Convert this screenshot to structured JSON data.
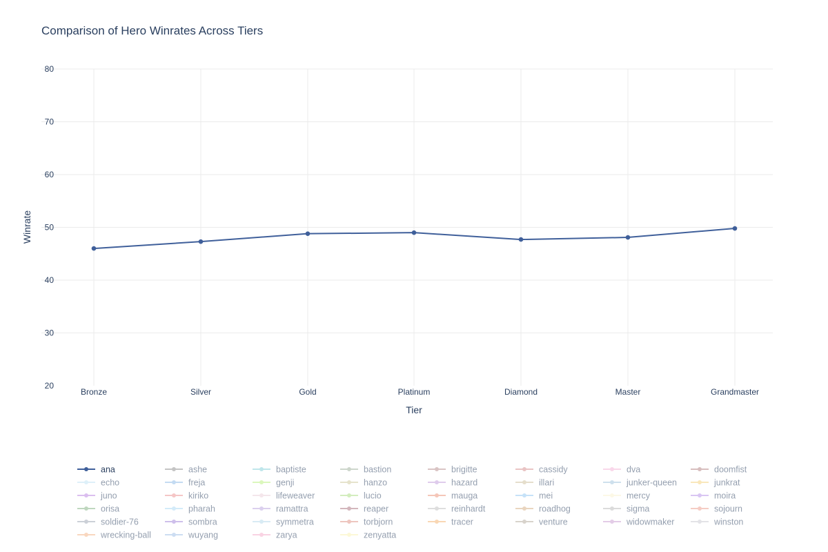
{
  "chart_data": {
    "type": "line",
    "title": "Comparison of Hero Winrates Across Tiers",
    "xlabel": "Tier",
    "ylabel": "Winrate",
    "categories": [
      "Bronze",
      "Silver",
      "Gold",
      "Platinum",
      "Diamond",
      "Master",
      "Grandmaster"
    ],
    "ylim": [
      20,
      80
    ],
    "yticks": [
      20,
      30,
      40,
      50,
      60,
      70,
      80
    ],
    "grid": true,
    "legend_position": "bottom",
    "series": [
      {
        "name": "ana",
        "color": "#3f5f9a",
        "values": [
          46.0,
          47.3,
          48.8,
          49.0,
          47.7,
          48.1,
          49.8
        ],
        "visible": true
      },
      {
        "name": "ashe",
        "color": "#8a8a8a",
        "visible": false
      },
      {
        "name": "baptiste",
        "color": "#80cfd8",
        "visible": false
      },
      {
        "name": "bastion",
        "color": "#9daf99",
        "visible": false
      },
      {
        "name": "brigitte",
        "color": "#b58a8a",
        "visible": false
      },
      {
        "name": "cassidy",
        "color": "#d48a8a",
        "visible": false
      },
      {
        "name": "dva",
        "color": "#f5b0d6",
        "visible": false
      },
      {
        "name": "doomfist",
        "color": "#b07f7f",
        "visible": false
      },
      {
        "name": "echo",
        "color": "#bfe3f5",
        "visible": false
      },
      {
        "name": "freja",
        "color": "#8ab8e6",
        "visible": false
      },
      {
        "name": "genji",
        "color": "#b8f07c",
        "visible": false
      },
      {
        "name": "hanzo",
        "color": "#cfc99a",
        "visible": false
      },
      {
        "name": "hazard",
        "color": "#c09adb",
        "visible": false
      },
      {
        "name": "illari",
        "color": "#cdbf9a",
        "visible": false
      },
      {
        "name": "junker-queen",
        "color": "#9ec3dc",
        "visible": false
      },
      {
        "name": "junkrat",
        "color": "#f5d07a",
        "visible": false
      },
      {
        "name": "juno",
        "color": "#b87fe0",
        "visible": false
      },
      {
        "name": "kiriko",
        "color": "#ec8f8f",
        "visible": false
      },
      {
        "name": "lifeweaver",
        "color": "#ebcfd8",
        "visible": false
      },
      {
        "name": "lucio",
        "color": "#a8dc7f",
        "visible": false
      },
      {
        "name": "mauga",
        "color": "#ec8f73",
        "visible": false
      },
      {
        "name": "mei",
        "color": "#8fc6f2",
        "visible": false
      },
      {
        "name": "mercy",
        "color": "#fbf3cf",
        "visible": false
      },
      {
        "name": "moira",
        "color": "#b48fe8",
        "visible": false
      },
      {
        "name": "orisa",
        "color": "#80b080",
        "visible": false
      },
      {
        "name": "pharah",
        "color": "#a8d8f5",
        "visible": false
      },
      {
        "name": "ramattra",
        "color": "#b8a3de",
        "visible": false
      },
      {
        "name": "reaper",
        "color": "#a86f7c",
        "visible": false
      },
      {
        "name": "reinhardt",
        "color": "#bfbfbf",
        "visible": false
      },
      {
        "name": "roadhog",
        "color": "#d4ac80",
        "visible": false
      },
      {
        "name": "sigma",
        "color": "#b8b8b8",
        "visible": false
      },
      {
        "name": "sojourn",
        "color": "#ec9a8a",
        "visible": false
      },
      {
        "name": "soldier-76",
        "color": "#9aa3b0",
        "visible": false
      },
      {
        "name": "sombra",
        "color": "#9f80d8",
        "visible": false
      },
      {
        "name": "symmetra",
        "color": "#b3d8ea",
        "visible": false
      },
      {
        "name": "torbjorn",
        "color": "#df8f80",
        "visible": false
      },
      {
        "name": "tracer",
        "color": "#f5b06c",
        "visible": false
      },
      {
        "name": "venture",
        "color": "#b3a89a",
        "visible": false
      },
      {
        "name": "widowmaker",
        "color": "#c89ad0",
        "visible": false
      },
      {
        "name": "winston",
        "color": "#c8c8d0",
        "visible": false
      },
      {
        "name": "wrecking-ball",
        "color": "#f5b080",
        "visible": false
      },
      {
        "name": "wuyang",
        "color": "#9abce6",
        "visible": false
      },
      {
        "name": "zarya",
        "color": "#f5a8c8",
        "visible": false
      },
      {
        "name": "zenyatta",
        "color": "#fbf3b0",
        "visible": false
      }
    ]
  }
}
